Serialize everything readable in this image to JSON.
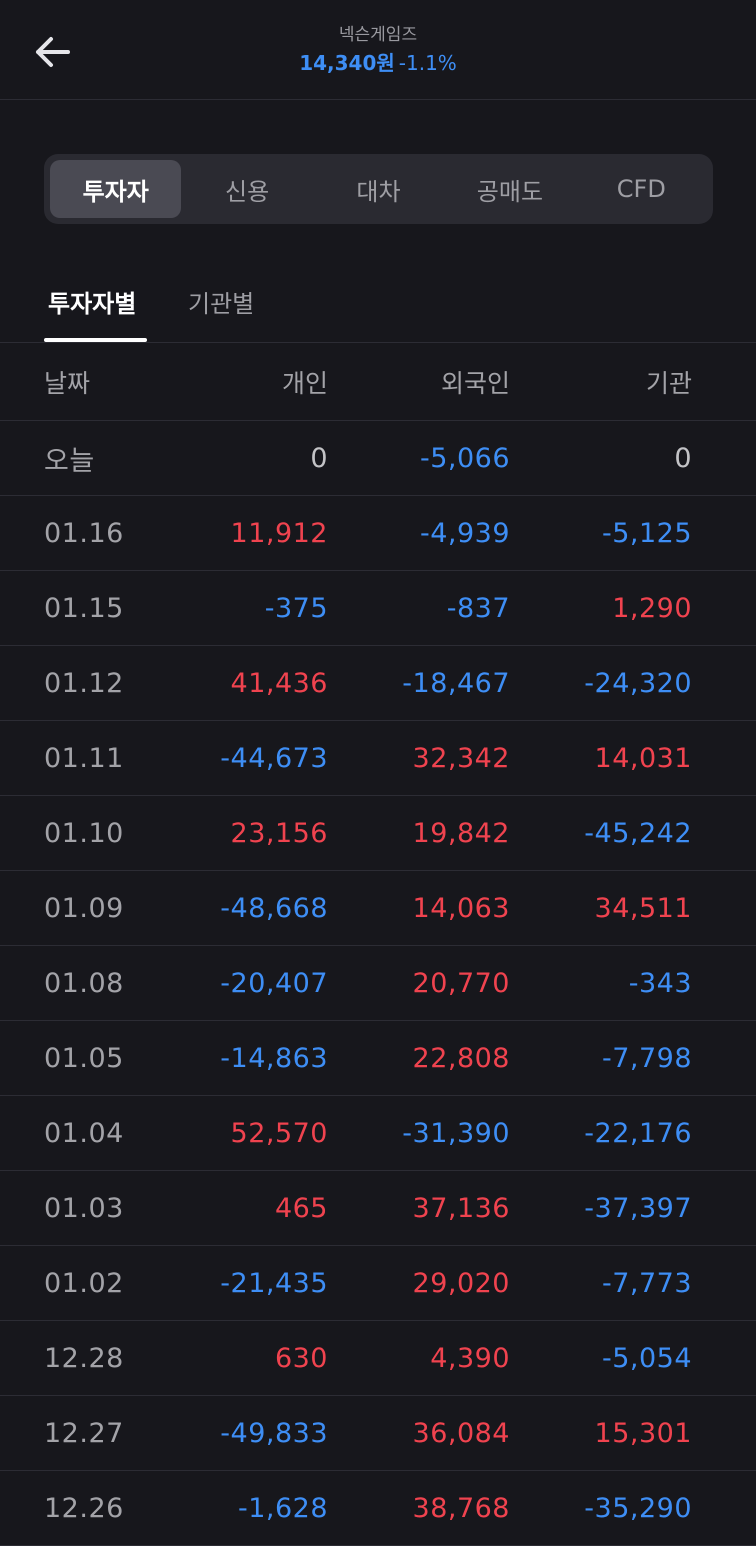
{
  "header": {
    "stock_name": "넥슨게임즈",
    "price": "14,340원",
    "change": "-1.1%"
  },
  "segments": [
    "투자자",
    "신용",
    "대차",
    "공매도",
    "CFD"
  ],
  "active_segment": 0,
  "subtabs": [
    "투자자별",
    "기관별"
  ],
  "columns": [
    "날짜",
    "개인",
    "외국인",
    "기관"
  ],
  "rows": [
    {
      "date": "오늘",
      "individual": "0",
      "foreign": "-5,066",
      "institution": "0"
    },
    {
      "date": "01.16",
      "individual": "11,912",
      "foreign": "-4,939",
      "institution": "-5,125"
    },
    {
      "date": "01.15",
      "individual": "-375",
      "foreign": "-837",
      "institution": "1,290"
    },
    {
      "date": "01.12",
      "individual": "41,436",
      "foreign": "-18,467",
      "institution": "-24,320"
    },
    {
      "date": "01.11",
      "individual": "-44,673",
      "foreign": "32,342",
      "institution": "14,031"
    },
    {
      "date": "01.10",
      "individual": "23,156",
      "foreign": "19,842",
      "institution": "-45,242"
    },
    {
      "date": "01.09",
      "individual": "-48,668",
      "foreign": "14,063",
      "institution": "34,511"
    },
    {
      "date": "01.08",
      "individual": "-20,407",
      "foreign": "20,770",
      "institution": "-343"
    },
    {
      "date": "01.05",
      "individual": "-14,863",
      "foreign": "22,808",
      "institution": "-7,798"
    },
    {
      "date": "01.04",
      "individual": "52,570",
      "foreign": "-31,390",
      "institution": "-22,176"
    },
    {
      "date": "01.03",
      "individual": "465",
      "foreign": "37,136",
      "institution": "-37,397"
    },
    {
      "date": "01.02",
      "individual": "-21,435",
      "foreign": "29,020",
      "institution": "-7,773"
    },
    {
      "date": "12.28",
      "individual": "630",
      "foreign": "4,390",
      "institution": "-5,054"
    },
    {
      "date": "12.27",
      "individual": "-49,833",
      "foreign": "36,084",
      "institution": "15,301"
    },
    {
      "date": "12.26",
      "individual": "-1,628",
      "foreign": "38,768",
      "institution": "-35,290"
    }
  ],
  "colors": {
    "positive": "#f0434f",
    "negative": "#3e8ef5",
    "background": "#17171c"
  }
}
